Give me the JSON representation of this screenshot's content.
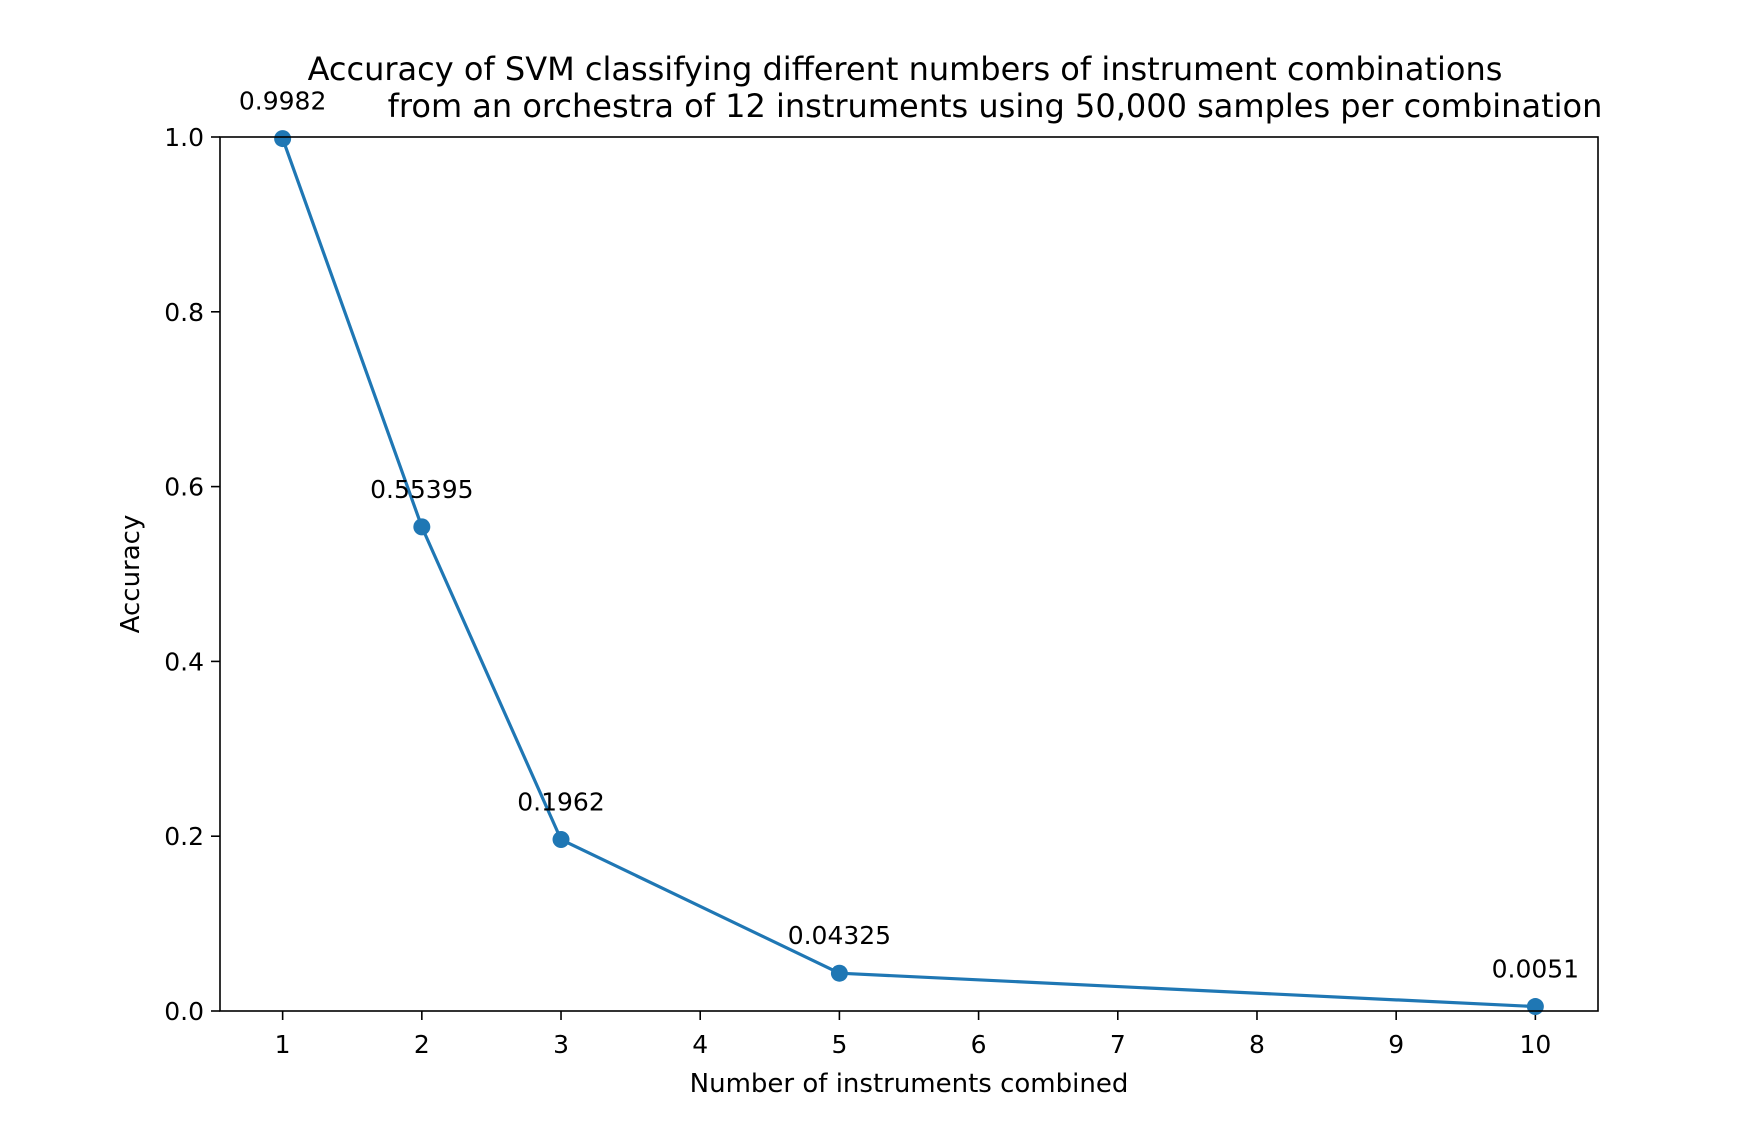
{
  "chart_data": {
    "type": "line",
    "title_lines": [
      "Accuracy of SVM classifying different numbers of instrument combinations",
      "from an orchestra of 12 instruments using 50,000 samples per combination"
    ],
    "xlabel": "Number of instruments combined",
    "ylabel": "Accuracy",
    "xlim": [
      0.55,
      10.45
    ],
    "ylim": [
      0.0,
      1.0
    ],
    "xticks": [
      1,
      2,
      3,
      4,
      5,
      6,
      7,
      8,
      9,
      10
    ],
    "yticks": [
      0.0,
      0.2,
      0.4,
      0.6,
      0.8,
      1.0
    ],
    "ytick_labels": [
      "0.0",
      "0.2",
      "0.4",
      "0.6",
      "0.8",
      "1.0"
    ],
    "grid": false,
    "series": [
      {
        "color": "#1f77b4",
        "marker": "circle",
        "x": [
          1,
          2,
          3,
          5,
          10
        ],
        "y": [
          0.9982,
          0.55395,
          0.1962,
          0.04325,
          0.0051
        ],
        "labels": [
          "0.9982",
          "0.55395",
          "0.1962",
          "0.04325",
          "0.0051"
        ]
      }
    ]
  }
}
